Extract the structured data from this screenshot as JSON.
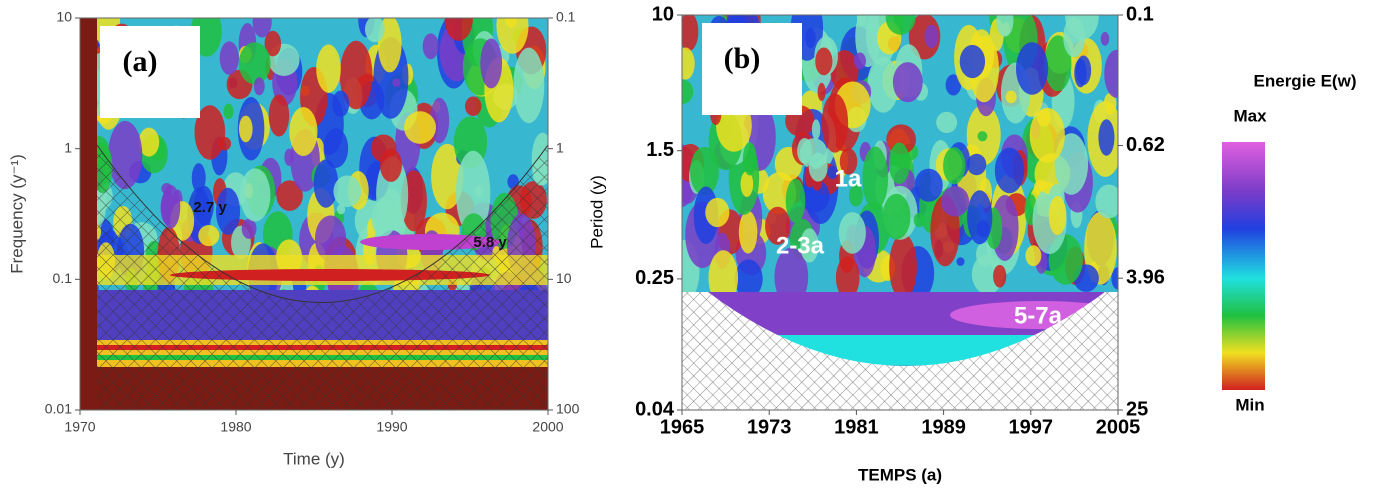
{
  "chart_data": [
    {
      "type": "wavelet",
      "title": "(a)",
      "xlabel": "Time (y)",
      "ylabel": "Frequency (y⁻¹)",
      "xlim": [
        1970,
        2000
      ],
      "xticks": [
        1970,
        1980,
        1990,
        2000
      ],
      "ylim": [
        0.01,
        10
      ],
      "yticks": [
        0.01,
        0.1,
        1,
        10
      ],
      "log_y": true,
      "y2lim": [
        100,
        0.1
      ],
      "y2ticks": [
        100,
        10,
        1,
        0.1
      ],
      "annotations": [
        "2.7 y",
        "5.8 y"
      ]
    },
    {
      "type": "wavelet",
      "title": "(b)",
      "xlabel": "TEMPS (a)",
      "ylabel": "Period (y)",
      "xlim": [
        1965,
        2005
      ],
      "xticks": [
        1965,
        1973,
        1981,
        1989,
        1997,
        2005
      ],
      "ylim": [
        0.04,
        10
      ],
      "yticks": [
        0.04,
        0.25,
        1.5,
        10
      ],
      "log_y": true,
      "y2lim": [
        25,
        0.1
      ],
      "y2ticks": [
        25,
        3.96,
        0.62,
        0.1
      ],
      "annotations": [
        "1a",
        "2-3a",
        "5-7a"
      ],
      "colorbar": {
        "title": "Energie E(w)",
        "max_label": "Max",
        "min_label": "Min"
      }
    }
  ]
}
